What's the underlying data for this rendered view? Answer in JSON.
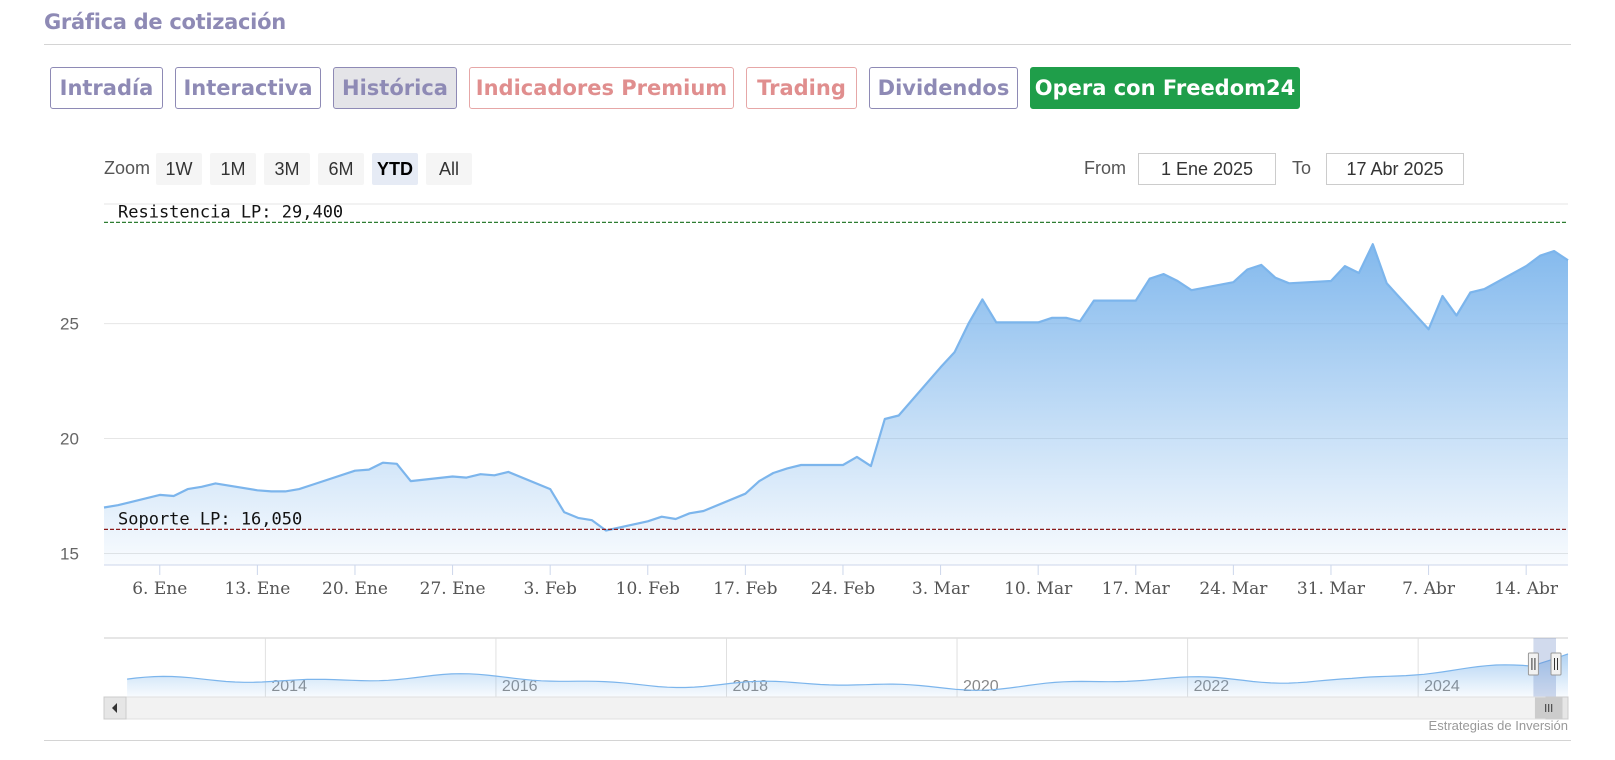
{
  "section_title": "Gráfica de cotización",
  "tabs": [
    {
      "label": "Intradía",
      "state": "default"
    },
    {
      "label": "Interactiva",
      "state": "default"
    },
    {
      "label": "Histórica",
      "state": "active"
    },
    {
      "label": "Indicadores Premium",
      "state": "premium"
    },
    {
      "label": "Trading",
      "state": "premium"
    },
    {
      "label": "Dividendos",
      "state": "default"
    },
    {
      "label": "Opera con Freedom24",
      "state": "cta"
    }
  ],
  "zoom": {
    "label": "Zoom",
    "buttons": [
      "1W",
      "1M",
      "3M",
      "6M",
      "YTD",
      "All"
    ],
    "selected": "YTD"
  },
  "range": {
    "from_label": "From",
    "from_value": "1 Ene 2025",
    "to_label": "To",
    "to_value": "17 Abr 2025"
  },
  "credit": "Estrategias de Inversión",
  "colors": {
    "accent": "#8e8ab5",
    "premium": "#e08e8e",
    "cta": "#1f9e4a",
    "series": "#7cb5ec",
    "resistance": "#2e7d32",
    "support": "#8b1a1a"
  },
  "chart_data": {
    "type": "area",
    "title": "",
    "xlabel": "",
    "ylabel": "",
    "ylim": [
      14.5,
      30.2
    ],
    "y_ticks": [
      15,
      20,
      25
    ],
    "x_tick_labels": [
      "6. Ene",
      "13. Ene",
      "20. Ene",
      "27. Ene",
      "3. Feb",
      "10. Feb",
      "17. Feb",
      "24. Feb",
      "3. Mar",
      "10. Mar",
      "17. Mar",
      "24. Mar",
      "31. Mar",
      "7. Abr",
      "14. Abr"
    ],
    "x_tick_dates": [
      "2025-01-06",
      "2025-01-13",
      "2025-01-20",
      "2025-01-27",
      "2025-02-03",
      "2025-02-10",
      "2025-02-17",
      "2025-02-24",
      "2025-03-03",
      "2025-03-10",
      "2025-03-17",
      "2025-03-24",
      "2025-03-31",
      "2025-04-07",
      "2025-04-14"
    ],
    "x_range": [
      "2025-01-02",
      "2025-04-17"
    ],
    "grid": true,
    "legend": "none",
    "series": [
      {
        "x": [
          "2025-01-02",
          "2025-01-03",
          "2025-01-06",
          "2025-01-07",
          "2025-01-08",
          "2025-01-09",
          "2025-01-10",
          "2025-01-13",
          "2025-01-14",
          "2025-01-15",
          "2025-01-16",
          "2025-01-17",
          "2025-01-20",
          "2025-01-21",
          "2025-01-22",
          "2025-01-23",
          "2025-01-24",
          "2025-01-27",
          "2025-01-28",
          "2025-01-29",
          "2025-01-30",
          "2025-01-31",
          "2025-02-03",
          "2025-02-04",
          "2025-02-05",
          "2025-02-06",
          "2025-02-07",
          "2025-02-10",
          "2025-02-11",
          "2025-02-12",
          "2025-02-13",
          "2025-02-14",
          "2025-02-17",
          "2025-02-18",
          "2025-02-19",
          "2025-02-20",
          "2025-02-21",
          "2025-02-24",
          "2025-02-25",
          "2025-02-26",
          "2025-02-27",
          "2025-02-28",
          "2025-03-03",
          "2025-03-04",
          "2025-03-05",
          "2025-03-06",
          "2025-03-07",
          "2025-03-10",
          "2025-03-11",
          "2025-03-12",
          "2025-03-13",
          "2025-03-14",
          "2025-03-17",
          "2025-03-18",
          "2025-03-19",
          "2025-03-20",
          "2025-03-21",
          "2025-03-24",
          "2025-03-25",
          "2025-03-26",
          "2025-03-27",
          "2025-03-28",
          "2025-03-31",
          "2025-04-01",
          "2025-04-02",
          "2025-04-03",
          "2025-04-04",
          "2025-04-07",
          "2025-04-08",
          "2025-04-09",
          "2025-04-10",
          "2025-04-11",
          "2025-04-14",
          "2025-04-15",
          "2025-04-16",
          "2025-04-17"
        ],
        "values": [
          17.0,
          17.1,
          17.55,
          17.5,
          17.8,
          17.9,
          18.05,
          17.75,
          17.7,
          17.7,
          17.8,
          18.0,
          18.6,
          18.65,
          18.95,
          18.9,
          18.15,
          18.35,
          18.3,
          18.45,
          18.4,
          18.55,
          17.8,
          16.8,
          16.55,
          16.45,
          16.0,
          16.4,
          16.6,
          16.5,
          16.75,
          16.85,
          17.6,
          18.15,
          18.5,
          18.7,
          18.85,
          18.85,
          19.2,
          18.8,
          20.85,
          21.0,
          23.1,
          23.75,
          25.0,
          26.05,
          25.05,
          25.05,
          25.25,
          25.25,
          25.1,
          26.0,
          26.0,
          26.95,
          27.15,
          26.85,
          26.45,
          26.8,
          27.35,
          27.55,
          27.0,
          26.75,
          26.85,
          27.5,
          27.2,
          28.45,
          26.75,
          24.75,
          26.2,
          25.35,
          26.35,
          26.5,
          27.5,
          27.95,
          28.15,
          27.75
        ]
      }
    ],
    "annotations": [
      {
        "label": "Resistencia LP: 29,400",
        "y": 29.4
      },
      {
        "label": "Soporte LP: 16,050",
        "y": 16.05
      }
    ],
    "navigator": {
      "year_labels": [
        "2014",
        "2016",
        "2018",
        "2020",
        "2022",
        "2024"
      ],
      "years": [
        2014,
        2016,
        2018,
        2020,
        2022,
        2024
      ],
      "x_range": [
        2012.6,
        2025.3
      ],
      "selection": [
        2025.0,
        2025.3
      ]
    }
  }
}
